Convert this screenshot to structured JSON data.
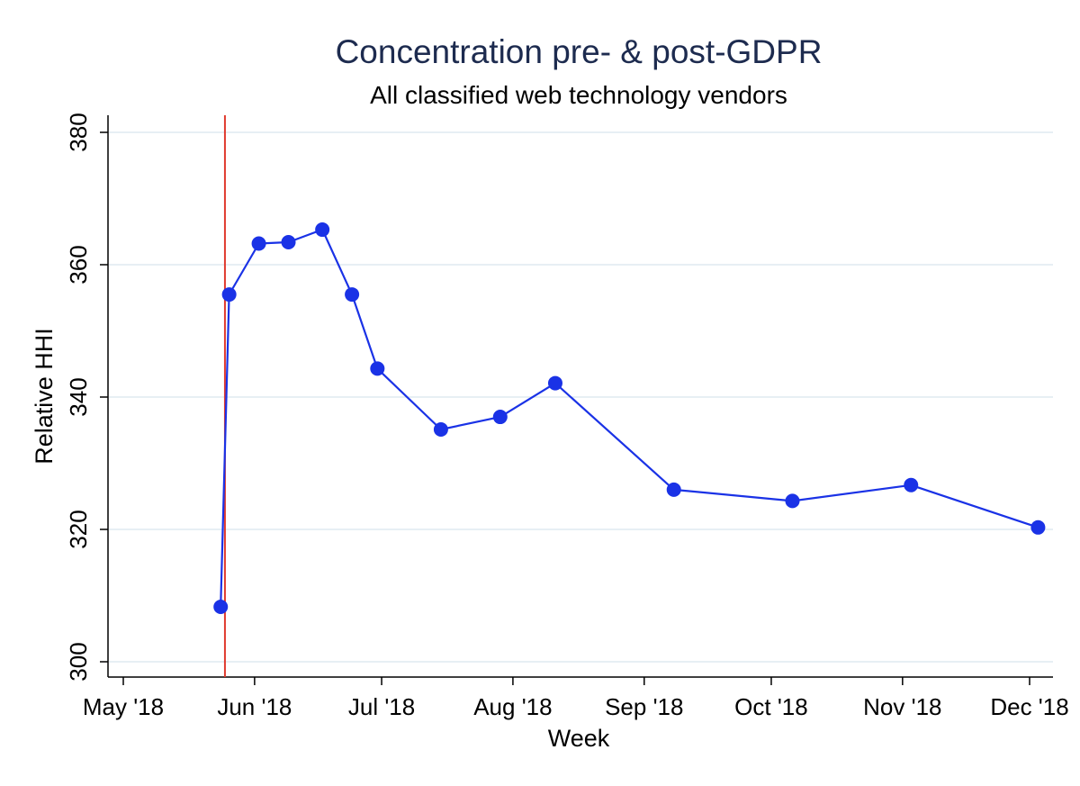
{
  "chart_data": {
    "type": "line",
    "title": "Concentration pre- & post-GDPR",
    "subtitle": "All classified web technology vendors",
    "xlabel": "Week",
    "ylabel": "Relative HHI",
    "x_tick_labels": [
      "May '18",
      "Jun '18",
      "Jul '18",
      "Aug '18",
      "Sep '18",
      "Oct '18",
      "Nov '18",
      "Dec '18"
    ],
    "x_tick_dates": [
      "2018-05-01",
      "2018-06-01",
      "2018-07-01",
      "2018-08-01",
      "2018-09-01",
      "2018-10-01",
      "2018-11-01",
      "2018-12-01"
    ],
    "y_ticks": [
      300,
      320,
      340,
      360,
      380
    ],
    "ylim": [
      300,
      380
    ],
    "xlim": [
      "2018-04-29",
      "2018-12-10"
    ],
    "grid": true,
    "reference_line": {
      "x": "2018-05-25",
      "color": "#e03a2e"
    },
    "series": [
      {
        "color": "#1a32e6",
        "points": [
          {
            "x": "2018-05-24",
            "y": 308.3
          },
          {
            "x": "2018-05-26",
            "y": 355.5
          },
          {
            "x": "2018-06-02",
            "y": 363.2
          },
          {
            "x": "2018-06-09",
            "y": 363.4
          },
          {
            "x": "2018-06-17",
            "y": 365.3
          },
          {
            "x": "2018-06-24",
            "y": 355.5
          },
          {
            "x": "2018-06-30",
            "y": 344.3
          },
          {
            "x": "2018-07-15",
            "y": 335.1
          },
          {
            "x": "2018-07-29",
            "y": 337.0
          },
          {
            "x": "2018-08-11",
            "y": 342.1
          },
          {
            "x": "2018-09-08",
            "y": 326.0
          },
          {
            "x": "2018-10-06",
            "y": 324.3
          },
          {
            "x": "2018-11-03",
            "y": 326.7
          },
          {
            "x": "2018-12-03",
            "y": 320.3
          }
        ]
      }
    ]
  }
}
